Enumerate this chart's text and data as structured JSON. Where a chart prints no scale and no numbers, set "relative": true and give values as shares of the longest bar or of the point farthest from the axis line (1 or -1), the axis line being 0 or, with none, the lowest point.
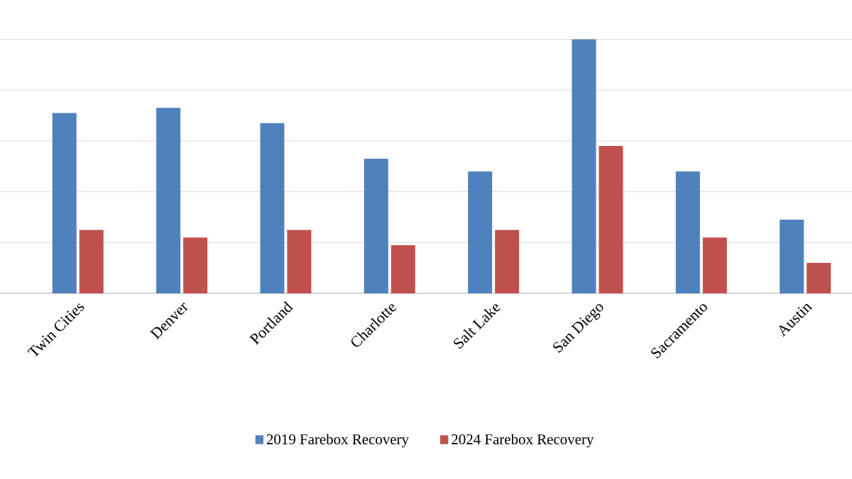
{
  "chart_data": {
    "type": "bar",
    "relative": true,
    "grid": "y",
    "legend": "bottom",
    "categories": [
      "Twin Cities",
      "Denver",
      "Portland",
      "Charlotte",
      "Salt Lake",
      "San Diego",
      "Sacramento",
      "Austin"
    ],
    "series": [
      {
        "name": "2019 Farebox Recovery",
        "color": "#4f81bd",
        "values": [
          0.71,
          0.73,
          0.67,
          0.53,
          0.48,
          1,
          0.48,
          0.29
        ]
      },
      {
        "name": "2024 Farebox Recovery",
        "color": "#c0504d",
        "values": [
          0.25,
          0.22,
          0.25,
          0.19,
          0.25,
          0.58,
          0.22,
          0.12
        ]
      }
    ]
  }
}
